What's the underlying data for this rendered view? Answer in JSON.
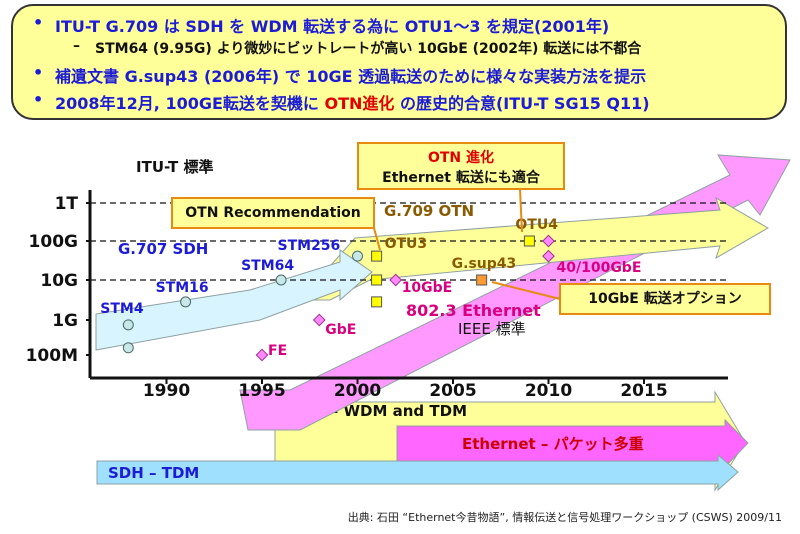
{
  "bullets": [
    {
      "marker": "•",
      "text": "ITU-T G.709 は SDH を WDM 転送する為に OTU1～3 を規定(2001年)",
      "indent": 0
    },
    {
      "marker": "–",
      "text": "STM64 (9.95G) より微妙にビットレートが高い 10GbE (2002年) 転送には不都合",
      "indent": 1
    },
    {
      "marker": "•",
      "text": "補遺文書 G.sup43 (2006年) で 10GE 透過転送のために様々な実装方法を提示",
      "indent": 0
    },
    {
      "marker": "•",
      "prefix": "2008年12月, 100GE転送を契機に ",
      "highlight": "OTN進化",
      "suffix": " の歴史的合意(ITU-T SG15 Q11)",
      "indent": 0
    }
  ],
  "source": "出典: 石田 “Ethernet今昔物語”, 情報伝送と信号処理ワークショップ (CSWS) 2009/11",
  "colors": {
    "box_fill": "#ffff99",
    "bullet_text": "#1c1cd6",
    "highlight": "#e00000",
    "sdh": "#1c1cd6",
    "ethernet": "#d80080",
    "otn": "#8a5a00"
  },
  "chart_data": {
    "type": "scatter",
    "x_ticks": [
      1990,
      1995,
      2000,
      2005,
      2010,
      2015
    ],
    "y_ticks": [
      "1T",
      "100G",
      "10G",
      "1G",
      "100M"
    ],
    "xlim": [
      1986,
      2019
    ],
    "y_scale": "log",
    "grid_y_dashed": [
      "1T",
      "100G",
      "10G"
    ],
    "lane_labels": [
      {
        "text": "ITU-T 標準",
        "color": "#111111"
      },
      {
        "text": "IEEE 標準",
        "color": "#111111"
      }
    ],
    "series": [
      {
        "name": "SDH",
        "color": "#1c1cd6",
        "points": [
          {
            "label": "",
            "year": 1988,
            "rate": "155M"
          },
          {
            "label": "STM4",
            "year": 1988,
            "rate": "622M"
          },
          {
            "label": "STM16",
            "year": 1991,
            "rate": "2.5G"
          },
          {
            "label": "STM64",
            "year": 1996,
            "rate": "10G"
          },
          {
            "label": "STM256",
            "year": 2000,
            "rate": "40G"
          }
        ]
      },
      {
        "name": "Ethernet",
        "color": "#d80080",
        "points": [
          {
            "label": "FE",
            "year": 1995,
            "rate": "100M"
          },
          {
            "label": "GbE",
            "year": 1998,
            "rate": "1G"
          },
          {
            "label": "10GbE",
            "year": 2002,
            "rate": "10G"
          },
          {
            "label": "40/100GbE",
            "year": 2010,
            "rate": "40G"
          },
          {
            "label": "",
            "year": 2010,
            "rate": "100G"
          }
        ]
      },
      {
        "name": "OTN",
        "color": "#8a5a00",
        "points": [
          {
            "label": "OTU3",
            "year": 2001,
            "rate": "40G"
          },
          {
            "label": "",
            "year": 2001,
            "rate": "10G"
          },
          {
            "label": "",
            "year": 2001,
            "rate": "2.5G"
          },
          {
            "label": "G.sup43",
            "year": 2006.5,
            "rate": "10G"
          },
          {
            "label": "OTU4",
            "year": 2009,
            "rate": "100G"
          }
        ]
      }
    ],
    "arrow_labels": [
      {
        "text": "G.707 SDH",
        "color": "#1c1cd6"
      },
      {
        "text": "G.709 OTN",
        "color": "#8a5a00"
      },
      {
        "text": "802.3 Ethernet",
        "color": "#d80080"
      }
    ],
    "callouts": [
      {
        "lines": [
          "OTN Recommendation"
        ],
        "color": "#111111"
      },
      {
        "lines": [
          "OTN 進化",
          "Ethernet 転送にも適合"
        ],
        "color": "#111111",
        "first_color": "#e00000"
      },
      {
        "lines": [
          "10GbE 転送オプション"
        ],
        "color": "#111111"
      }
    ],
    "timeline_bars": [
      {
        "label": "OTN – WDM and TDM",
        "from": 2000,
        "color": "#ffff99",
        "text_color": "#111111"
      },
      {
        "label": "Ethernet – パケット多重",
        "from": 2002,
        "color": "#ff66ff",
        "text_color": "#cc0000"
      },
      {
        "label": "SDH – TDM",
        "from": 1986,
        "color": "#9fe0ff",
        "text_color": "#1c1cd6"
      }
    ]
  }
}
